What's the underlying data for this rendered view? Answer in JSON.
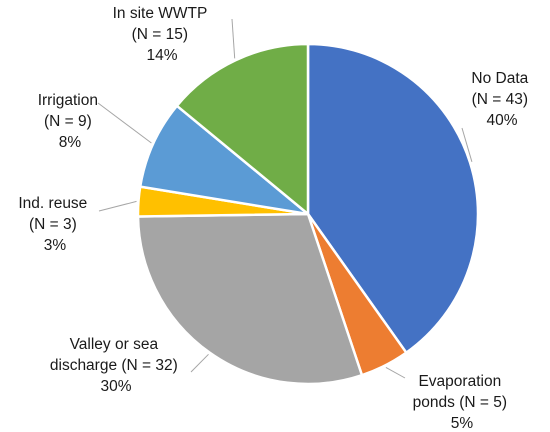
{
  "chart_data": {
    "type": "pie",
    "title": "",
    "slices": [
      {
        "label": "No Data",
        "n_text": "(N = 43)",
        "pct_text": "40%",
        "value": 43,
        "color": "#4472C4"
      },
      {
        "label": "Evaporation",
        "n_text": "ponds (N = 5)",
        "pct_text": "5%",
        "value": 5,
        "color": "#ED7D31"
      },
      {
        "label": "Valley or sea",
        "n_text": "discharge (N = 32)",
        "pct_text": "30%",
        "value": 32,
        "color": "#A5A5A5"
      },
      {
        "label": "Ind. reuse",
        "n_text": "(N = 3)",
        "pct_text": "3%",
        "value": 3,
        "color": "#FFC000"
      },
      {
        "label": "Irrigation",
        "n_text": "(N = 9)",
        "pct_text": "8%",
        "value": 9,
        "color": "#5B9BD5"
      },
      {
        "label": "In site WWTP",
        "n_text": "(N = 15)",
        "pct_text": "14%",
        "value": 15,
        "color": "#70AD47"
      }
    ],
    "start": "12 o'clock",
    "direction": "clockwise"
  }
}
